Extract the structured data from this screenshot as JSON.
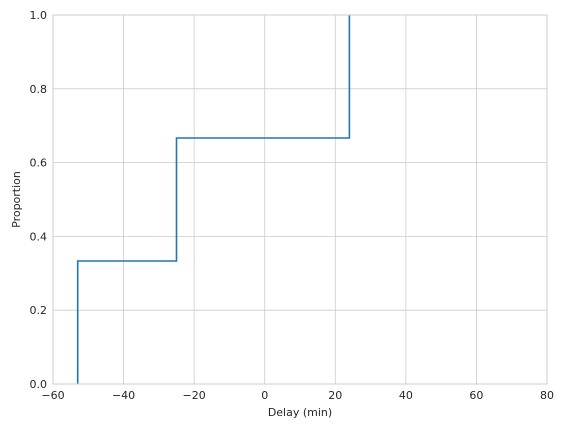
{
  "chart_data": {
    "type": "line",
    "subtype": "ecdf-step",
    "title": "",
    "xlabel": "Delay (min)",
    "ylabel": "Proportion",
    "xlim": [
      -60,
      80
    ],
    "ylim": [
      0,
      1
    ],
    "grid": true,
    "x_ticks": [
      -60,
      -40,
      -20,
      0,
      20,
      40,
      60,
      80
    ],
    "x_tick_labels": [
      "−60",
      "−40",
      "−20",
      "0",
      "20",
      "40",
      "60",
      "80"
    ],
    "y_ticks": [
      0,
      0.2,
      0.4,
      0.6,
      0.8,
      1.0
    ],
    "y_tick_labels": [
      "0.0",
      "0.2",
      "0.4",
      "0.6",
      "0.8",
      "1.0"
    ],
    "series": [
      {
        "color": "#1f77b4",
        "x": [
          -53,
          -25,
          24
        ],
        "y": [
          0.3333,
          0.6667,
          1.0
        ]
      }
    ]
  }
}
